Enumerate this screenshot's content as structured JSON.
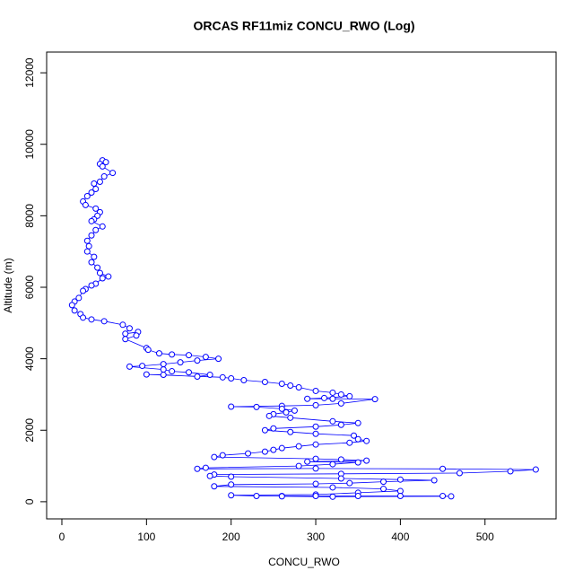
{
  "chart_data": {
    "type": "line",
    "title": "ORCAS RF11miz CONCU_RWO (Log)",
    "x_label": "CONCU_RWO",
    "y_label": "Altitude (m)",
    "x": [
      48,
      52,
      45,
      48,
      60,
      50,
      45,
      38,
      40,
      35,
      30,
      25,
      28,
      40,
      45,
      42,
      38,
      35,
      48,
      40,
      35,
      30,
      32,
      30,
      38,
      35,
      42,
      45,
      55,
      48,
      40,
      35,
      28,
      25,
      20,
      15,
      12,
      15,
      22,
      25,
      35,
      50,
      72,
      80,
      75,
      90,
      88,
      75,
      100,
      102,
      115,
      130,
      150,
      170,
      185,
      160,
      140,
      120,
      95,
      80,
      120,
      130,
      150,
      175,
      160,
      120,
      100,
      190,
      200,
      215,
      240,
      260,
      270,
      280,
      300,
      320,
      330,
      340,
      310,
      290,
      320,
      370,
      330,
      300,
      260,
      200,
      230,
      260,
      275,
      265,
      250,
      245,
      270,
      320,
      350,
      330,
      300,
      250,
      240,
      270,
      300,
      345,
      350,
      360,
      340,
      300,
      280,
      260,
      250,
      240,
      220,
      190,
      180,
      300,
      330,
      360,
      290,
      350,
      320,
      280,
      170,
      160,
      300,
      450,
      560,
      530,
      470,
      330,
      180,
      175,
      200,
      330,
      400,
      440,
      380,
      340,
      300,
      200,
      180,
      320,
      380,
      400,
      350,
      300,
      200,
      230,
      260,
      300,
      350,
      400,
      450,
      460,
      320,
      260
    ],
    "series": [
      {
        "name": "Altitude",
        "color": "#0000ff",
        "values": [
          9550,
          9500,
          9450,
          9380,
          9200,
          9100,
          8950,
          8900,
          8750,
          8650,
          8550,
          8400,
          8300,
          8200,
          8100,
          8000,
          7900,
          7850,
          7700,
          7600,
          7450,
          7300,
          7150,
          7000,
          6850,
          6700,
          6550,
          6400,
          6300,
          6250,
          6100,
          6050,
          5950,
          5900,
          5700,
          5600,
          5500,
          5350,
          5250,
          5150,
          5100,
          5050,
          4950,
          4850,
          4700,
          4750,
          4650,
          4550,
          4300,
          4250,
          4150,
          4120,
          4100,
          4050,
          4000,
          3950,
          3900,
          3850,
          3800,
          3780,
          3700,
          3650,
          3620,
          3550,
          3500,
          3550,
          3560,
          3480,
          3450,
          3400,
          3350,
          3300,
          3250,
          3200,
          3100,
          3050,
          3000,
          2950,
          2900,
          2880,
          2880,
          2870,
          2750,
          2700,
          2680,
          2660,
          2650,
          2600,
          2550,
          2500,
          2450,
          2400,
          2350,
          2250,
          2200,
          2150,
          2100,
          2050,
          2000,
          1950,
          1900,
          1850,
          1750,
          1700,
          1650,
          1600,
          1550,
          1500,
          1450,
          1400,
          1350,
          1300,
          1250,
          1200,
          1180,
          1150,
          1120,
          1100,
          1050,
          1000,
          950,
          920,
          930,
          920,
          900,
          850,
          800,
          780,
          760,
          720,
          700,
          650,
          620,
          600,
          560,
          520,
          500,
          480,
          430,
          400,
          360,
          300,
          250,
          200,
          180,
          160,
          160,
          160,
          160,
          160,
          160,
          150,
          140,
          150
        ]
      }
    ],
    "xlim": [
      -18,
      584
    ],
    "ylim": [
      -480,
      12580
    ],
    "xticks": [
      0,
      100,
      200,
      300,
      400,
      500
    ],
    "yticks": [
      0,
      2000,
      4000,
      6000,
      8000,
      10000,
      12000
    ]
  }
}
